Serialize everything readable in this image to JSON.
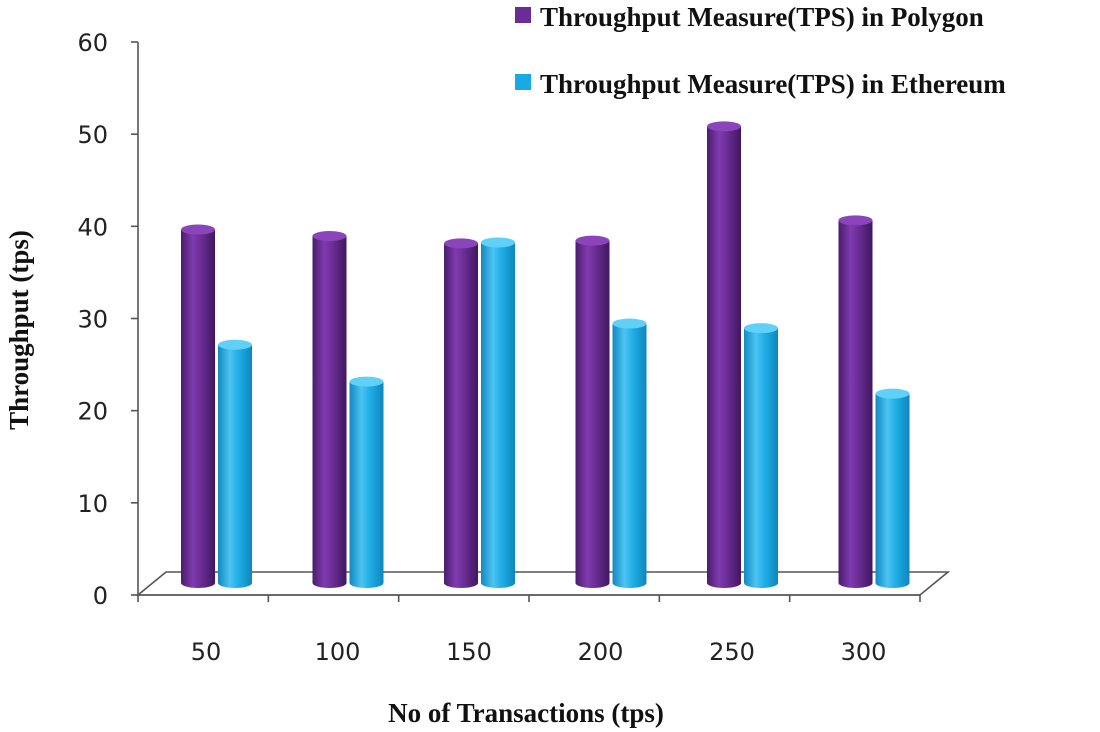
{
  "chart_data": {
    "type": "bar",
    "title": "",
    "xlabel": "No of Transactions (tps)",
    "ylabel": "Throughput (tps)",
    "categories": [
      "50",
      "100",
      "150",
      "200",
      "250",
      "300"
    ],
    "series": [
      {
        "name": "Throughput Measure(TPS) in Polygon",
        "values": [
          39,
          38.3,
          37.5,
          37.8,
          50.2,
          40
        ],
        "color": "#6a2d93"
      },
      {
        "name": "Throughput Measure(TPS) in Ethereum",
        "values": [
          26.5,
          22.5,
          37.6,
          28.8,
          28.3,
          21.2
        ],
        "color": "#1aa9e4"
      }
    ],
    "ylim": [
      0,
      60
    ],
    "yticks": [
      0,
      10,
      20,
      30,
      40,
      50,
      60
    ],
    "grid": false,
    "legend_position": "top-right"
  }
}
